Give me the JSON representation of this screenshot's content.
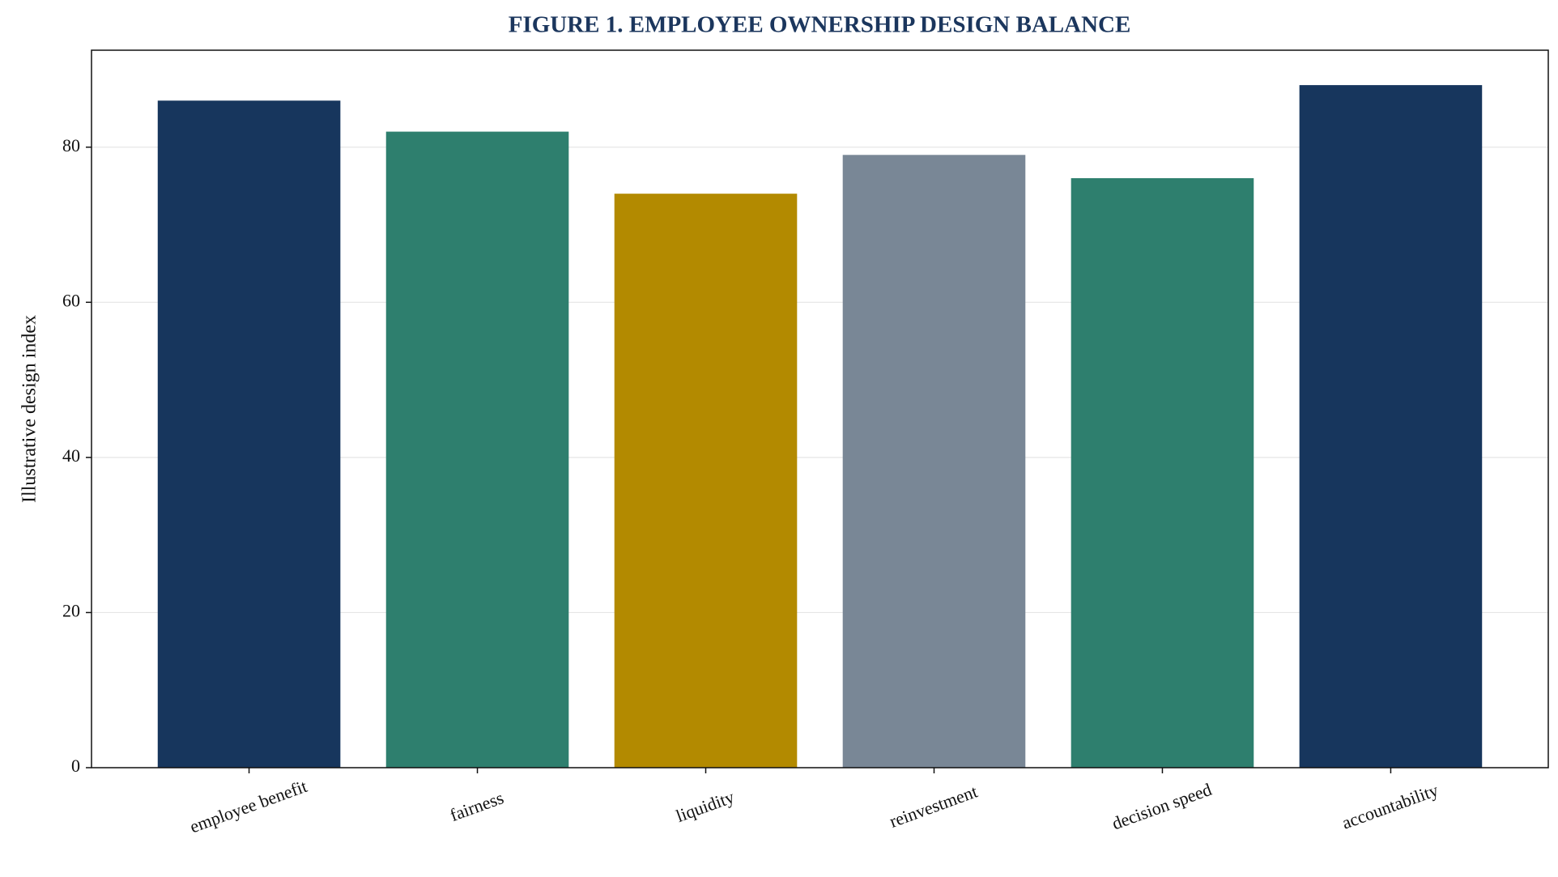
{
  "chart_data": {
    "type": "bar",
    "title": "FIGURE 1. EMPLOYEE OWNERSHIP DESIGN BALANCE",
    "y_label": "Illustrative design index",
    "categories": [
      "employee benefit",
      "fairness",
      "liquidity",
      "reinvestment",
      "decision speed",
      "accountability"
    ],
    "values": [
      86,
      82,
      74,
      79,
      76,
      88
    ],
    "colors": [
      "#17365d",
      "#2e7f6e",
      "#b38a00",
      "#798796",
      "#2e7f6e",
      "#17365d"
    ],
    "ylim": [
      0,
      92.5
    ],
    "yticks": [
      0,
      20,
      40,
      60,
      80
    ],
    "grid": true
  }
}
